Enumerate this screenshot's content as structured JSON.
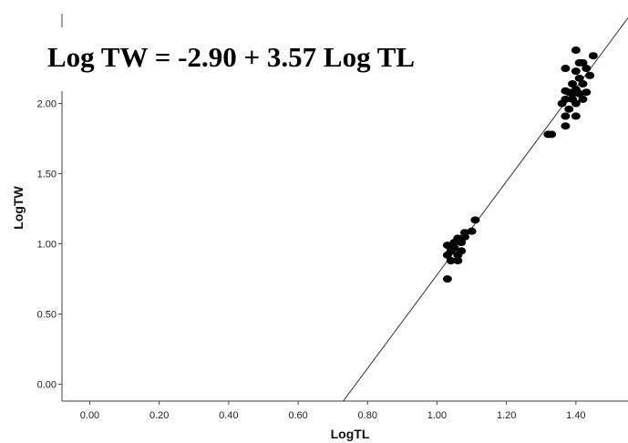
{
  "chart_data": {
    "type": "scatter",
    "title": "Log TW = -2.90 + 3.57 Log TL",
    "x_label": "LogTL",
    "y_label": "LogTW",
    "xlim": [
      -0.08,
      1.55
    ],
    "ylim": [
      -0.12,
      2.64
    ],
    "xticks": [
      {
        "value": 0,
        "label": "0.00"
      },
      {
        "value": 0.2,
        "label": "0.20"
      },
      {
        "value": 0.4,
        "label": "0.40"
      },
      {
        "value": 0.6,
        "label": "0.60"
      },
      {
        "value": 0.8,
        "label": "0.80"
      },
      {
        "value": 1,
        "label": "1.00"
      },
      {
        "value": 1.2,
        "label": "1.20"
      },
      {
        "value": 1.4,
        "label": "1.40"
      }
    ],
    "yticks": [
      {
        "value": 0,
        "label": "0.00"
      },
      {
        "value": 0.5,
        "label": "0.50"
      },
      {
        "value": 1,
        "label": "1.00"
      },
      {
        "value": 1.5,
        "label": "1.50"
      },
      {
        "value": 2,
        "label": "2.00"
      }
    ],
    "color": "#000000",
    "x": [
      1.11,
      1.1,
      1.08,
      1.08,
      1.06,
      1.05,
      1.03,
      1.05,
      1.04,
      1.07,
      1.06,
      1.04,
      1.06,
      1.03,
      1.07,
      1.03,
      1.4,
      1.45,
      1.37,
      1.42,
      1.4,
      1.43,
      1.41,
      1.39,
      1.42,
      1.4,
      1.38,
      1.41,
      1.43,
      1.37,
      1.39,
      1.42,
      1.36,
      1.4,
      1.38,
      1.37,
      1.4,
      1.37,
      1.32,
      1.33,
      1.39,
      1.37,
      1.41,
      1.44
    ],
    "values": [
      1.17,
      1.09,
      1.08,
      1.05,
      1.04,
      1.01,
      0.99,
      0.97,
      0.95,
      0.95,
      0.92,
      0.88,
      0.88,
      0.75,
      1.01,
      0.92,
      2.38,
      2.34,
      2.25,
      2.29,
      2.23,
      2.25,
      2.18,
      2.14,
      2.14,
      2.1,
      2.08,
      2.07,
      2.08,
      2.03,
      2.03,
      2.03,
      2.0,
      2.0,
      1.96,
      1.91,
      1.91,
      1.84,
      1.78,
      1.78,
      2.07,
      2.09,
      2.29,
      2.2
    ],
    "fit_line": {
      "x": [
        0.73,
        1.55
      ],
      "values": [
        -0.12,
        2.61
      ]
    }
  }
}
